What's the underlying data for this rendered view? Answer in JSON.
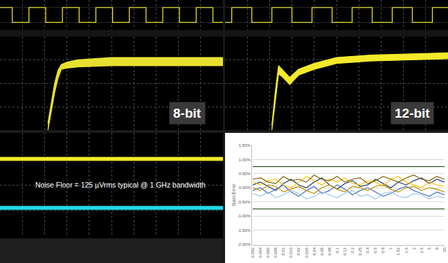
{
  "chart_data": [
    {
      "type": "line",
      "annotations": [
        "8-bit"
      ],
      "tick_labels": false,
      "grid": true,
      "xlim": [
        0,
        10
      ],
      "xticks": [
        0,
        1,
        2,
        3,
        4,
        5,
        6,
        7,
        8,
        9,
        10
      ],
      "ylim": [
        0,
        4
      ],
      "yticks": [
        0,
        1,
        2,
        3,
        4
      ],
      "y2lim": [
        -0.5,
        1.5
      ],
      "y2ticks": [
        0,
        1
      ],
      "series": [
        {
          "color": "#e8e030",
          "x": [
            2.15,
            2.3,
            2.45,
            2.6,
            2.75,
            3.0,
            3.5,
            5,
            10
          ],
          "values": [
            0,
            0.8,
            1.6,
            2.2,
            2.6,
            2.65,
            2.7,
            2.75,
            2.75
          ]
        },
        {
          "color": "#e8e030",
          "type": "area",
          "x": [
            2.15,
            2.3,
            2.45,
            2.6,
            2.75,
            3.0,
            3.5,
            5,
            10
          ],
          "values": [
            0.3,
            1.2,
            2.0,
            2.55,
            2.8,
            2.9,
            3.0,
            3.1,
            3.1
          ]
        },
        {
          "color": "#e8e030",
          "axis": "y2",
          "x": [
            0,
            0.55,
            0.55,
            1.3,
            1.3,
            2.05,
            2.05,
            2.8,
            2.8,
            3.55,
            3.55,
            4.3,
            4.3,
            5.05,
            5.05,
            5.8,
            5.8,
            6.55,
            6.55,
            7.3,
            7.3,
            8.05,
            8.05,
            8.8,
            8.8,
            9.55,
            9.55,
            10
          ],
          "values": [
            1,
            1,
            0,
            0,
            1,
            1,
            0,
            0,
            1,
            1,
            0,
            0,
            1,
            1,
            0,
            0,
            1,
            1,
            0,
            0,
            1,
            1,
            0,
            0,
            1,
            1,
            0,
            0
          ]
        }
      ]
    },
    {
      "type": "line",
      "annotations": [
        "12-bit"
      ],
      "tick_labels": false,
      "grid": true,
      "xlim": [
        0,
        10
      ],
      "xticks": [
        0,
        1,
        2,
        3,
        4,
        5,
        6,
        7,
        8,
        9,
        10
      ],
      "ylim": [
        0,
        4
      ],
      "yticks": [
        0,
        1,
        2,
        3,
        4
      ],
      "y2lim": [
        -0.5,
        1.5
      ],
      "y2ticks": [
        0,
        1
      ],
      "series": [
        {
          "color": "#f2ea2a",
          "x": [
            2.1,
            2.25,
            2.4,
            2.6,
            2.9,
            3.3,
            4,
            5,
            6.5,
            10
          ],
          "values": [
            0,
            1.3,
            2.4,
            2.25,
            1.95,
            2.35,
            2.6,
            2.85,
            2.95,
            3.05
          ]
        },
        {
          "color": "#f2ea2a",
          "type": "area",
          "x": [
            2.1,
            2.25,
            2.4,
            2.6,
            2.9,
            3.3,
            4,
            5,
            6.5,
            10
          ],
          "values": [
            0.2,
            1.6,
            2.75,
            2.55,
            2.25,
            2.6,
            2.85,
            3.1,
            3.2,
            3.3
          ]
        },
        {
          "color": "#e8e030",
          "axis": "y2",
          "x": [
            0,
            0.3,
            0.3,
            1.2,
            1.2,
            2.1,
            2.1,
            3.0,
            3.0,
            3.9,
            3.9,
            4.8,
            4.8,
            5.7,
            5.7,
            6.6,
            6.6,
            7.5,
            7.5,
            8.4,
            8.4,
            9.3,
            9.3,
            10
          ],
          "values": [
            0,
            0,
            1,
            1,
            0,
            0,
            1,
            1,
            0,
            0,
            1,
            1,
            0,
            0,
            1,
            1,
            0,
            0,
            1,
            1,
            0,
            0,
            1,
            1
          ]
        }
      ]
    },
    {
      "type": "line",
      "annotations": [
        "Noise Floor = 125 µVrms typical @ 1 GHz bandwidth"
      ],
      "tick_labels": false,
      "grid": true,
      "xlim": [
        0,
        10
      ],
      "xticks": [
        0,
        1,
        2,
        3,
        4,
        5,
        6,
        7,
        8,
        9,
        10
      ],
      "ylim": [
        0,
        4
      ],
      "yticks": [
        0,
        1,
        2,
        3,
        4
      ],
      "series": [
        {
          "color": "#f2ea2a",
          "x": [
            0,
            10
          ],
          "values": [
            2.94,
            2.94
          ]
        },
        {
          "color": "#f2ea2a",
          "type": "area",
          "x": [
            0,
            10
          ],
          "values": [
            3.06,
            3.06
          ]
        },
        {
          "color": "#22d8e8",
          "x": [
            0,
            10
          ],
          "values": [
            1.06,
            1.06
          ]
        },
        {
          "color": "#22d8e8",
          "type": "area",
          "x": [
            0,
            10
          ],
          "values": [
            1.18,
            1.18
          ]
        }
      ]
    },
    {
      "type": "line",
      "y_label": "Gain Error",
      "grid": "y",
      "categories": [
        "0.002",
        "0.004",
        "0.006",
        "0.008",
        "0.01",
        "0.016",
        "0.02",
        "0.025",
        "0.04",
        "0.05",
        "0.08",
        "0.1",
        "0.12",
        "0.2",
        "0.25",
        "0.4",
        "0.5",
        "0.8",
        "1",
        "1.02",
        "1.5",
        "2",
        "2.5",
        "5",
        "8",
        "10"
      ],
      "ylim": [
        -2,
        1.5
      ],
      "yticks": [
        {
          "value": -2,
          "label": "-2.00%"
        },
        {
          "value": -1.5,
          "label": "-1.50%"
        },
        {
          "value": -1,
          "label": "-1.00%"
        },
        {
          "value": -0.5,
          "label": "-0.50%"
        },
        {
          "value": 0,
          "label": "0.00%"
        },
        {
          "value": 0.5,
          "label": "0.50%"
        },
        {
          "value": 1,
          "label": "1.00%"
        },
        {
          "value": 1.5,
          "label": "1.50%"
        }
      ],
      "series": [
        {
          "color": "#1f3864",
          "values": [
            0.1,
            0.2,
            0.05,
            -0.1,
            0.15,
            0.3,
            0.1,
            0.0,
            0.2,
            0.35,
            0.1,
            -0.05,
            0.15,
            0.25,
            0.05,
            0.1,
            0.3,
            0.15,
            0.0,
            0.2,
            0.1,
            0.25,
            0.35,
            0.15,
            0.3,
            0.2
          ]
        },
        {
          "color": "#4472c4",
          "values": [
            -0.1,
            0.0,
            -0.2,
            -0.05,
            0.1,
            -0.15,
            -0.3,
            -0.1,
            0.05,
            -0.2,
            -0.1,
            0.1,
            -0.05,
            -0.25,
            -0.1,
            0.0,
            -0.15,
            -0.3,
            -0.2,
            -0.05,
            0.05,
            -0.1,
            -0.2,
            -0.3,
            -0.15,
            -0.25
          ]
        },
        {
          "color": "#ffc000",
          "values": [
            0.2,
            0.1,
            0.25,
            0.3,
            0.1,
            0.0,
            0.2,
            0.4,
            0.25,
            0.1,
            0.3,
            0.2,
            0.35,
            0.15,
            0.1,
            0.25,
            0.2,
            0.05,
            0.3,
            0.4,
            0.2,
            0.1,
            0.0,
            0.2,
            0.1,
            0.05
          ]
        },
        {
          "color": "#7f6000",
          "values": [
            0.3,
            0.35,
            0.2,
            0.15,
            0.4,
            0.25,
            0.3,
            0.2,
            0.45,
            0.3,
            0.25,
            0.4,
            0.2,
            0.3,
            0.35,
            0.15,
            0.25,
            0.4,
            0.3,
            0.2,
            0.35,
            0.45,
            0.3,
            0.25,
            0.4,
            0.3
          ]
        },
        {
          "color": "#9dc3e6",
          "values": [
            -0.2,
            -0.3,
            -0.15,
            -0.35,
            -0.25,
            -0.1,
            -0.2,
            -0.4,
            -0.3,
            -0.15,
            -0.25,
            -0.35,
            -0.2,
            -0.1,
            -0.3,
            -0.25,
            -0.4,
            -0.2,
            -0.15,
            -0.3,
            -0.35,
            -0.2,
            -0.25,
            -0.4,
            -0.3,
            -0.35
          ]
        },
        {
          "color": "#bf9000",
          "values": [
            0.0,
            -0.1,
            0.1,
            0.05,
            -0.15,
            -0.05,
            0.05,
            -0.1,
            -0.2,
            0.0,
            0.1,
            -0.05,
            -0.15,
            0.05,
            0.0,
            -0.1,
            0.05,
            0.1,
            -0.05,
            -0.15,
            0.0,
            0.05,
            -0.1,
            0.0,
            -0.05,
            -0.15
          ]
        },
        {
          "color": "#375623",
          "values": [
            0.75,
            0.75,
            0.75,
            0.75,
            0.75,
            0.75,
            0.75,
            0.75,
            0.75,
            0.75,
            0.75,
            0.75,
            0.75,
            0.75,
            0.75,
            0.75,
            0.75,
            0.75,
            0.75,
            0.75,
            0.75,
            0.75,
            0.75,
            0.75,
            0.75,
            0.75
          ]
        },
        {
          "color": "#375623",
          "values": [
            -0.75,
            -0.75,
            -0.75,
            -0.75,
            -0.75,
            -0.75,
            -0.75,
            -0.75,
            -0.75,
            -0.75,
            -0.75,
            -0.75,
            -0.75,
            -0.75,
            -0.75,
            -0.75,
            -0.75,
            -0.75,
            -0.75,
            -0.75,
            -0.75,
            -0.75,
            -0.75,
            -0.75,
            -0.75,
            -0.75
          ]
        }
      ]
    }
  ]
}
